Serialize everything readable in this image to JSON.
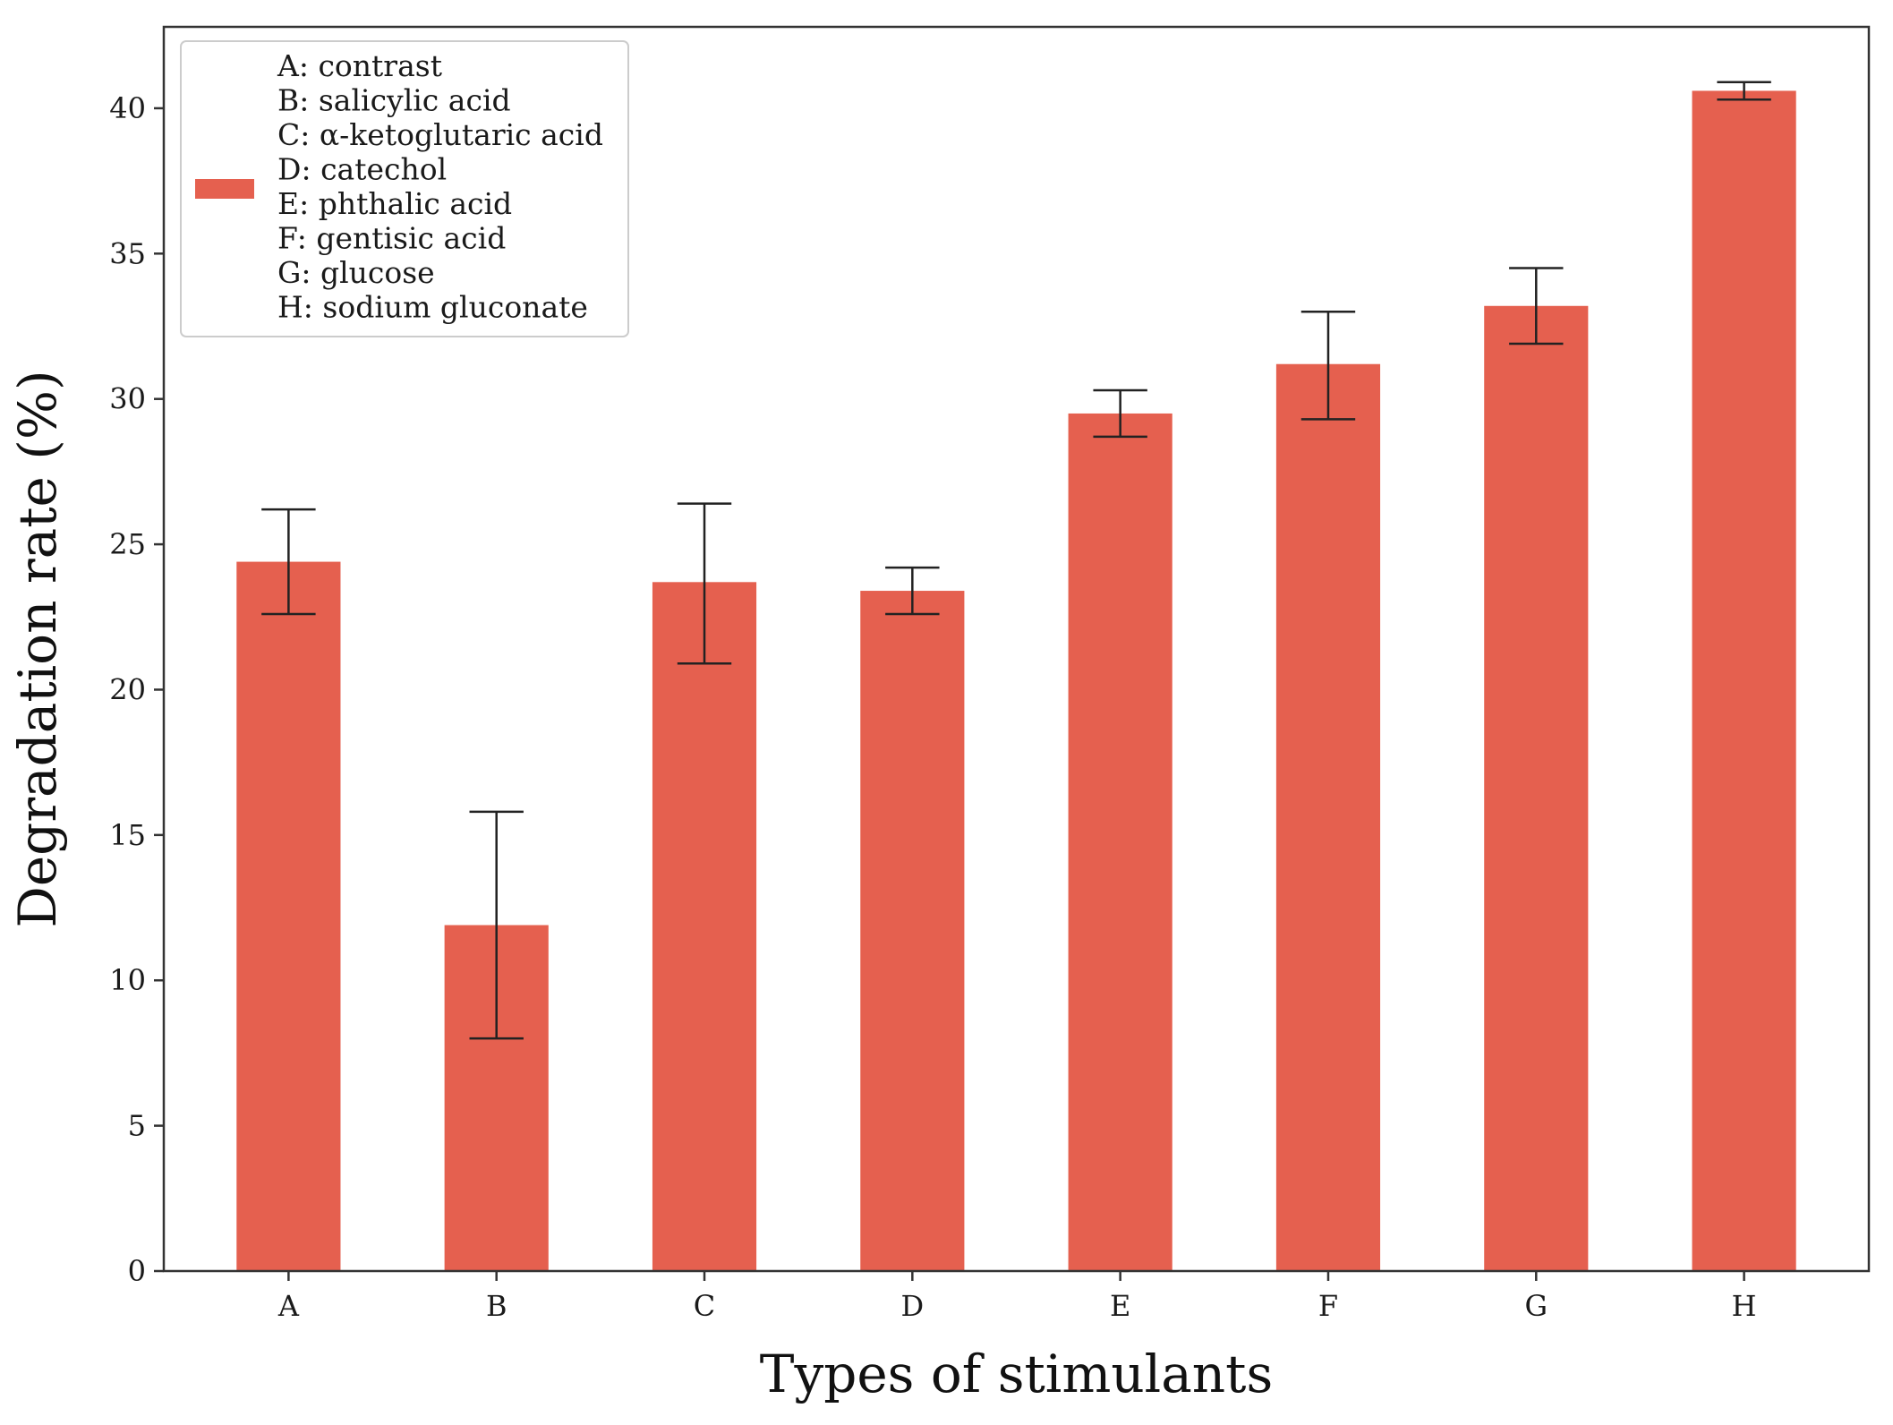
{
  "chart_data": {
    "type": "bar",
    "title": "",
    "xlabel": "Types of stimulants",
    "ylabel": "Degradation rate (%)",
    "categories": [
      "A",
      "B",
      "C",
      "D",
      "E",
      "F",
      "G",
      "H"
    ],
    "values": [
      24.4,
      11.9,
      23.7,
      23.4,
      29.5,
      31.2,
      33.2,
      40.6
    ],
    "error_low": [
      22.6,
      8.0,
      20.9,
      22.6,
      28.7,
      29.3,
      31.9,
      40.3
    ],
    "error_high": [
      26.2,
      15.8,
      26.4,
      24.2,
      30.3,
      33.0,
      34.5,
      40.9
    ],
    "ylim": [
      0,
      42.8
    ],
    "yticks": [
      0,
      5,
      10,
      15,
      20,
      25,
      30,
      35,
      40
    ],
    "ytick_labels": [
      "0",
      "5",
      "10",
      "15",
      "20",
      "25",
      "30",
      "35",
      "40"
    ],
    "grid": false,
    "legend_position": "top-left",
    "legend_entries": [
      "A: contrast",
      "B: salicylic acid",
      "C: α-ketoglutaric acid",
      "D: catechol",
      "E: phthalic acid",
      "F: gentisic acid",
      "G: glucose",
      "H: sodium gluconate"
    ],
    "bar_color": "#e5604f",
    "errorbar_color": "#222222",
    "axis_color": "#333333"
  }
}
